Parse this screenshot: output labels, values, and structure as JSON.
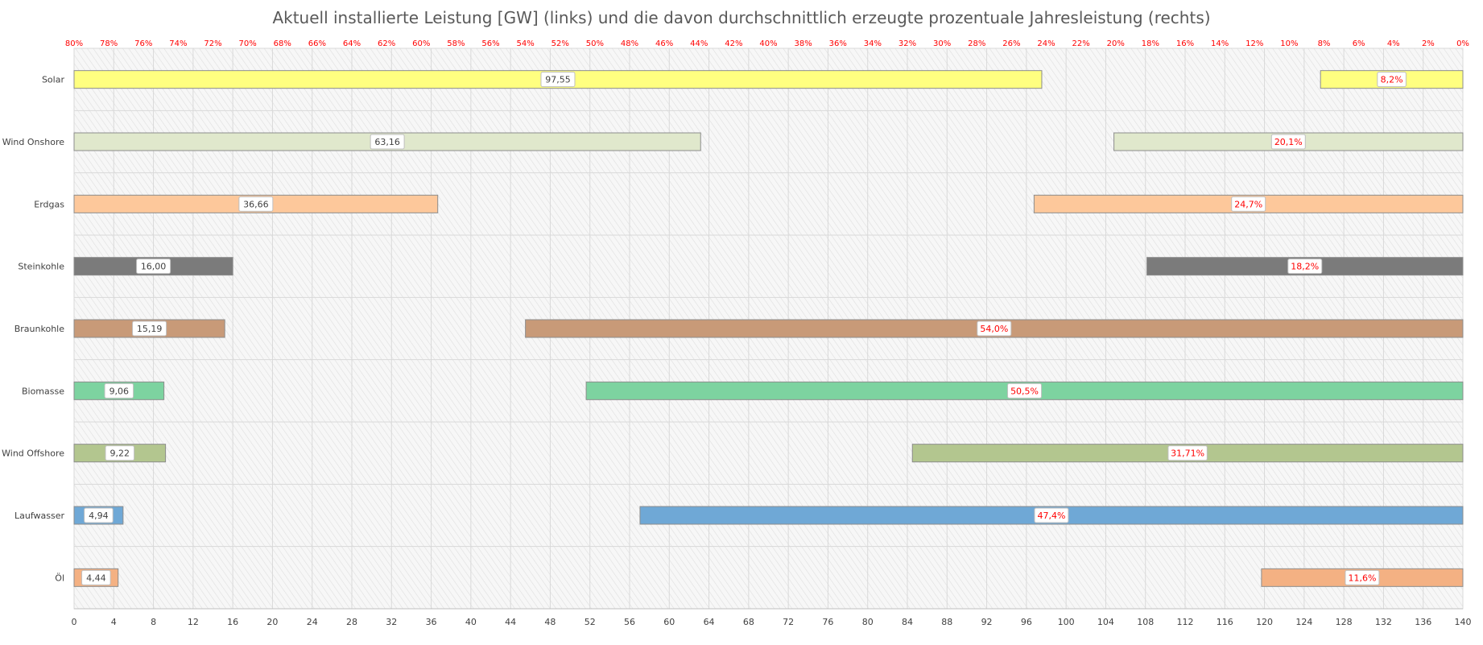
{
  "chart_data": {
    "type": "bar",
    "title": "Aktuell installierte Leistung [GW] (links) und die davon durchschnittlich  erzeugte prozentuale Jahresleistung (rechts)",
    "categories": [
      "Solar",
      "Wind Onshore",
      "Erdgas",
      "Steinkohle",
      "Braunkohle",
      "Biomasse",
      "Wind Offshore",
      "Laufwasser",
      "Öl"
    ],
    "series": [
      {
        "axis": "bottom",
        "direction": "left-to-right",
        "values": [
          97.55,
          63.16,
          36.66,
          16.0,
          15.19,
          9.06,
          9.22,
          4.94,
          4.44
        ],
        "labels": [
          "97,55",
          "63,16",
          "36,66",
          "16,00",
          "15,19",
          "9,06",
          "9,22",
          "4,94",
          "4,44"
        ]
      },
      {
        "axis": "top",
        "direction": "right-to-left",
        "values": [
          8.2,
          20.1,
          24.7,
          18.2,
          54.0,
          50.5,
          31.71,
          47.4,
          11.6
        ],
        "labels": [
          "8,2%",
          "20,1%",
          "24,7%",
          "18,2%",
          "54,0%",
          "50,5%",
          "31,71%",
          "47,4%",
          "11,6%"
        ]
      }
    ],
    "colors": [
      "#ffff80",
      "#e0e8cc",
      "#fdc89b",
      "#7b7b7b",
      "#c89a78",
      "#7dd3a0",
      "#b3c68f",
      "#6fa8d6",
      "#f4b183"
    ],
    "x_bottom": {
      "range": [
        0,
        140
      ],
      "ticks": [
        "0",
        "4",
        "8",
        "12",
        "16",
        "20",
        "24",
        "28",
        "32",
        "36",
        "40",
        "44",
        "48",
        "52",
        "56",
        "60",
        "64",
        "68",
        "72",
        "76",
        "80",
        "84",
        "88",
        "92",
        "96",
        "100",
        "104",
        "108",
        "112",
        "116",
        "120",
        "124",
        "128",
        "132",
        "136",
        "140"
      ]
    },
    "x_top": {
      "range": [
        80,
        0
      ],
      "ticks": [
        "80%",
        "78%",
        "76%",
        "74%",
        "72%",
        "70%",
        "68%",
        "66%",
        "64%",
        "62%",
        "60%",
        "58%",
        "56%",
        "54%",
        "52%",
        "50%",
        "48%",
        "46%",
        "44%",
        "42%",
        "40%",
        "38%",
        "36%",
        "34%",
        "32%",
        "30%",
        "28%",
        "26%",
        "24%",
        "22%",
        "20%",
        "18%",
        "16%",
        "14%",
        "12%",
        "10%",
        "8%",
        "6%",
        "4%",
        "2%",
        "0%"
      ]
    },
    "grid": true,
    "background_pattern": "diagonal-hatch"
  }
}
